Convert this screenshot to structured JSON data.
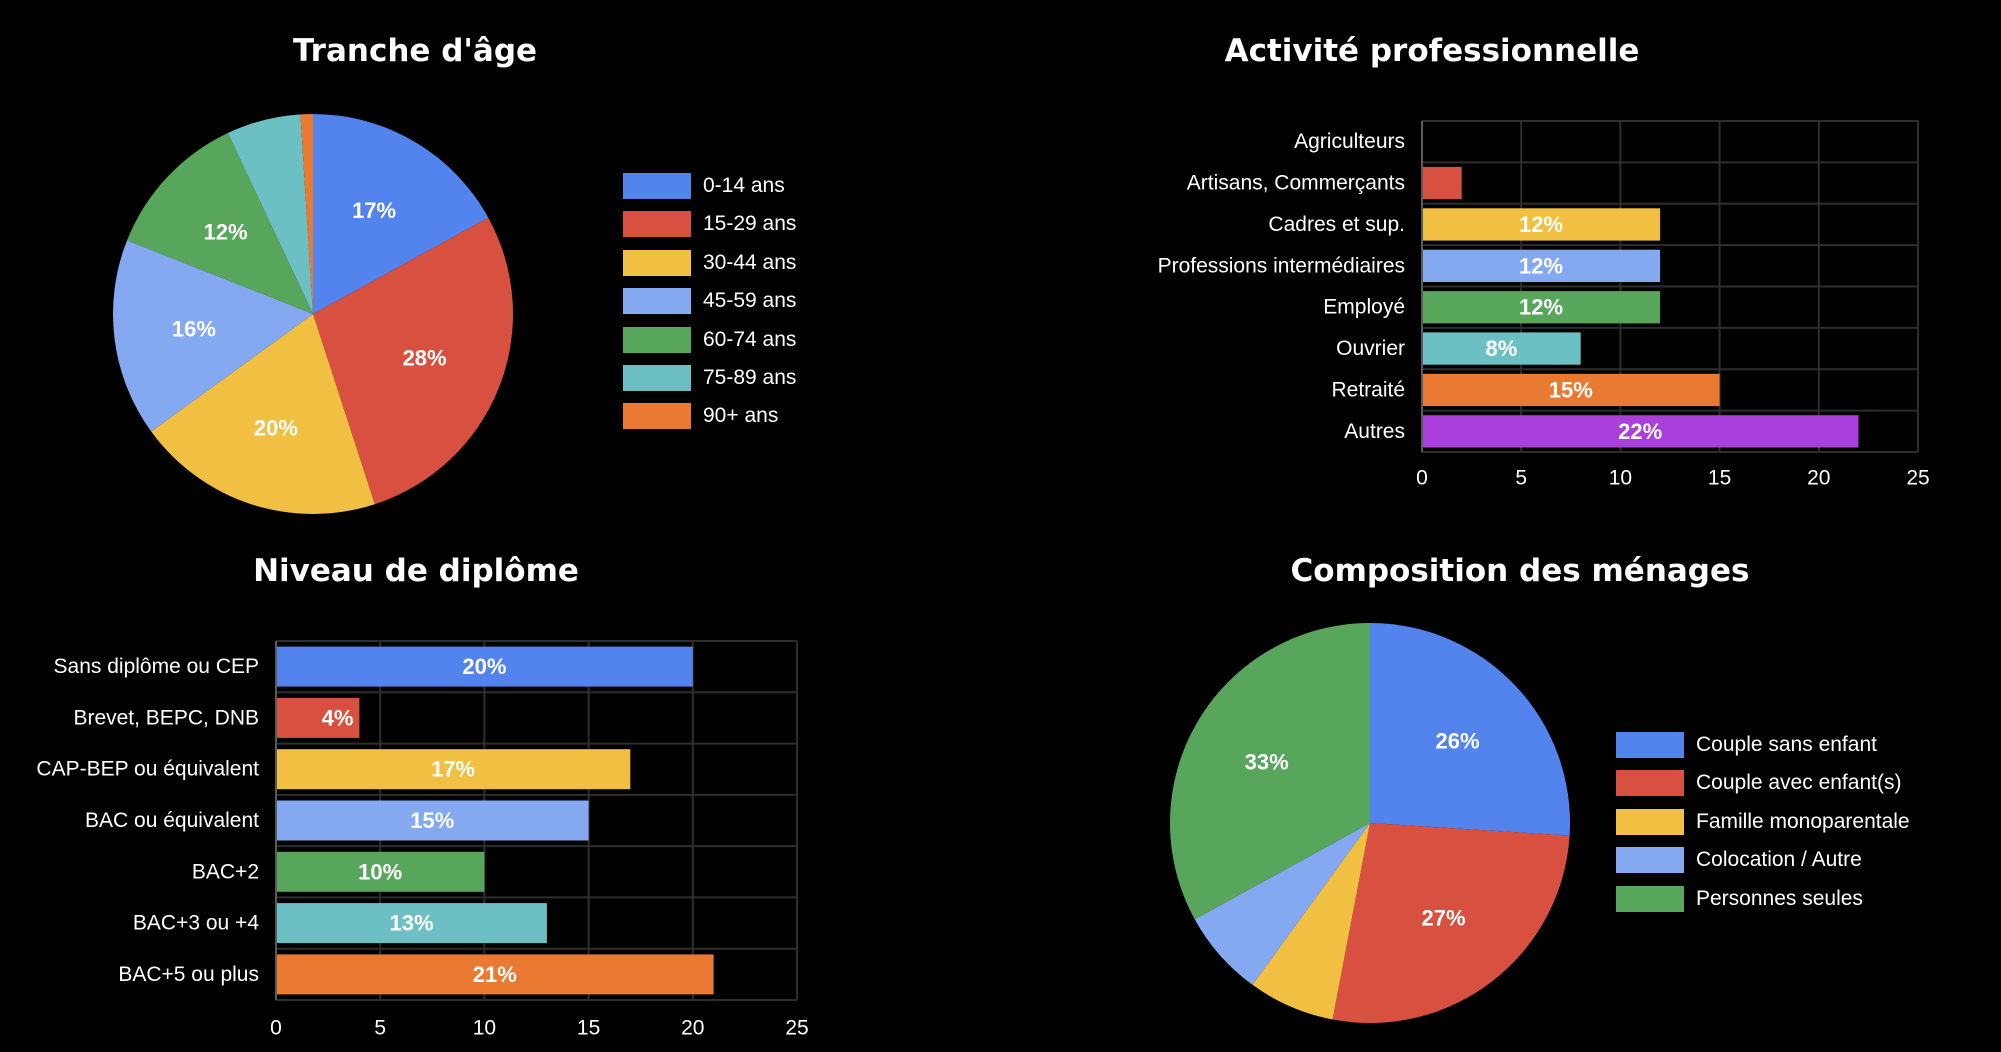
{
  "chart_data": [
    {
      "type": "pie",
      "title": "Tranche d'âge",
      "labels": [
        "0-14 ans",
        "15-29 ans",
        "30-44 ans",
        "45-59 ans",
        "60-74 ans",
        "75-89 ans",
        "90+ ans"
      ],
      "values": [
        17,
        28,
        20,
        16,
        12,
        6,
        1
      ],
      "slice_labels": [
        "17%",
        "28%",
        "20%",
        "16%",
        "12%",
        "",
        ""
      ],
      "colors": [
        "#5383ec",
        "#d85140",
        "#f1bf42",
        "#84a9f1",
        "#58a55c",
        "#6cc0c4",
        "#ea7a31"
      ],
      "legend": "right"
    },
    {
      "type": "bar",
      "orientation": "horizontal",
      "title": "Activité professionnelle",
      "categories": [
        "Agriculteurs",
        "Artisans, Commerçants",
        "Cadres et sup.",
        "Professions intermédiaires",
        "Employé",
        "Ouvrier",
        "Retraité",
        "Autres"
      ],
      "values": [
        0,
        2,
        12,
        12,
        12,
        8,
        15,
        22
      ],
      "data_labels": [
        "",
        "",
        "12%",
        "12%",
        "12%",
        "8%",
        "15%",
        "22%"
      ],
      "colors": [
        "#5383ec",
        "#d85140",
        "#f1bf42",
        "#84a9f1",
        "#58a55c",
        "#6cc0c4",
        "#ea7a31",
        "#ab3fdc"
      ],
      "xlim": [
        0,
        25
      ],
      "xticks": [
        0,
        5,
        10,
        15,
        20,
        25
      ],
      "grid": true
    },
    {
      "type": "bar",
      "orientation": "horizontal",
      "title": "Niveau de diplôme",
      "categories": [
        "Sans diplôme ou CEP",
        "Brevet, BEPC, DNB",
        "CAP-BEP ou équivalent",
        "BAC ou équivalent",
        "BAC+2",
        "BAC+3 ou +4",
        "BAC+5 ou plus"
      ],
      "values": [
        20,
        4,
        17,
        15,
        10,
        13,
        21
      ],
      "data_labels": [
        "20%",
        "4%",
        "17%",
        "15%",
        "10%",
        "13%",
        "21%"
      ],
      "colors": [
        "#5383ec",
        "#d85140",
        "#f1bf42",
        "#84a9f1",
        "#58a55c",
        "#6cc0c4",
        "#ea7a31"
      ],
      "xlim": [
        0,
        25
      ],
      "xticks": [
        0,
        5,
        10,
        15,
        20,
        25
      ],
      "grid": true
    },
    {
      "type": "pie",
      "title": "Composition des ménages",
      "labels": [
        "Couple sans enfant",
        "Couple avec enfant(s)",
        "Famille monoparentale",
        "Colocation / Autre",
        "Personnes seules"
      ],
      "values": [
        26,
        27,
        7,
        7,
        33
      ],
      "slice_labels": [
        "26%",
        "27%",
        "",
        "",
        "33%"
      ],
      "colors": [
        "#5383ec",
        "#d85140",
        "#f1bf42",
        "#84a9f1",
        "#58a55c"
      ],
      "legend": "right"
    }
  ]
}
